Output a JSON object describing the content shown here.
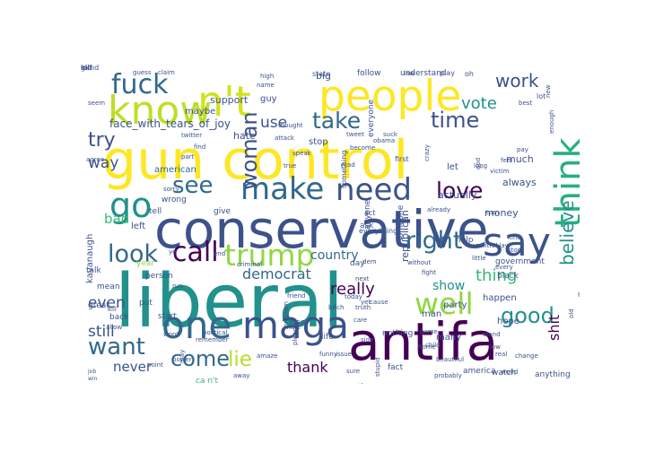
{
  "palette": {
    "dark_purple": "#440154",
    "indigo": "#3b528b",
    "blue": "#31688e",
    "teal": "#21918c",
    "green": "#35b779",
    "lime": "#90d743",
    "yellow": "#fde725",
    "deep_violet": "#472c7a"
  },
  "words": [
    {
      "text": "conservative",
      "color": "#3b528b"
    },
    {
      "text": "liberal",
      "color": "#21918c"
    },
    {
      "text": "gun control",
      "color": "#fde725"
    },
    {
      "text": "antifa",
      "color": "#440154"
    },
    {
      "text": "people",
      "color": "#fde725"
    },
    {
      "text": "know",
      "color": "#bddf26"
    },
    {
      "text": "n't",
      "color": "#d2e21b"
    },
    {
      "text": "say",
      "color": "#3b528b"
    },
    {
      "text": "one",
      "color": "#31688e"
    },
    {
      "text": "maga",
      "color": "#3b528b"
    },
    {
      "text": "go",
      "color": "#21918c"
    },
    {
      "text": "make",
      "color": "#31688e"
    },
    {
      "text": "need",
      "color": "#3b528b"
    },
    {
      "text": "think",
      "color": "#29af7f"
    },
    {
      "text": "trump",
      "color": "#90d743"
    },
    {
      "text": "fuck",
      "color": "#31688e"
    },
    {
      "text": "well",
      "color": "#90d743"
    },
    {
      "text": "right",
      "color": "#31688e"
    },
    {
      "text": "call",
      "color": "#440154"
    },
    {
      "text": "look",
      "color": "#31688e"
    },
    {
      "text": "take",
      "color": "#31688e"
    },
    {
      "text": "time",
      "color": "#3b528b"
    },
    {
      "text": "see",
      "color": "#31688e"
    },
    {
      "text": "want",
      "color": "#31688e"
    },
    {
      "text": "come",
      "color": "#31688e"
    },
    {
      "text": "good",
      "color": "#21918c"
    },
    {
      "text": "love",
      "color": "#440154"
    },
    {
      "text": "try",
      "color": "#3b528b"
    },
    {
      "text": "woman",
      "color": "#3b528b"
    },
    {
      "text": "lie",
      "color": "#b5de2b"
    },
    {
      "text": "believe",
      "color": "#21918c"
    },
    {
      "text": "work",
      "color": "#3b528b"
    },
    {
      "text": "vote",
      "color": "#21918c"
    },
    {
      "text": "use",
      "color": "#3b528b"
    },
    {
      "text": "way",
      "color": "#3b528b"
    },
    {
      "text": "really",
      "color": "#440154"
    },
    {
      "text": "thing",
      "color": "#35b779"
    },
    {
      "text": "democrat",
      "color": "#31688e"
    },
    {
      "text": "still",
      "color": "#3b528b"
    },
    {
      "text": "even",
      "color": "#3b528b"
    },
    {
      "text": "thank",
      "color": "#440154"
    },
    {
      "text": "never",
      "color": "#3b528b"
    },
    {
      "text": "bad",
      "color": "#35b779"
    },
    {
      "text": "shit",
      "color": "#440154"
    },
    {
      "text": "show",
      "color": "#21918c"
    },
    {
      "text": "country",
      "color": "#31688e"
    },
    {
      "text": "face_with_tears_of_joy",
      "color": "#3b528b"
    },
    {
      "text": "support",
      "color": "#3b528b"
    },
    {
      "text": "guy",
      "color": "#3b528b"
    },
    {
      "text": "hate",
      "color": "#3b528b"
    },
    {
      "text": "stop",
      "color": "#3b528b"
    },
    {
      "text": "big",
      "color": "#3b528b"
    },
    {
      "text": "maybe",
      "color": "#3b528b"
    },
    {
      "text": "american",
      "color": "#31688e"
    },
    {
      "text": "left",
      "color": "#3b528b"
    },
    {
      "text": "give",
      "color": "#3b528b"
    },
    {
      "text": "wrong",
      "color": "#3b528b"
    },
    {
      "text": "kavanaugh",
      "color": "#3b528b"
    },
    {
      "text": "tell",
      "color": "#3b528b"
    },
    {
      "text": "talk",
      "color": "#3b528b"
    },
    {
      "text": "mean",
      "color": "#3b528b"
    },
    {
      "text": "great",
      "color": "#3b528b"
    },
    {
      "text": "back",
      "color": "#3b528b"
    },
    {
      "text": "put",
      "color": "#3b528b"
    },
    {
      "text": "start",
      "color": "#3b528b"
    },
    {
      "text": "year",
      "color": "#90d743"
    },
    {
      "text": "person",
      "color": "#3b528b"
    },
    {
      "text": "lose",
      "color": "#3b528b"
    },
    {
      "text": "life",
      "color": "#3b528b"
    },
    {
      "text": "another",
      "color": "#3b528b"
    },
    {
      "text": "fact",
      "color": "#3b528b"
    },
    {
      "text": "america",
      "color": "#3b528b"
    },
    {
      "text": "watch",
      "color": "#3b528b"
    },
    {
      "text": "anything",
      "color": "#3b528b"
    },
    {
      "text": "ca n't",
      "color": "#35b779"
    },
    {
      "text": "republican",
      "color": "#3b528b"
    },
    {
      "text": "actually",
      "color": "#3b528b"
    },
    {
      "text": "money",
      "color": "#3b528b"
    },
    {
      "text": "always",
      "color": "#3b528b"
    },
    {
      "text": "much",
      "color": "#3b528b"
    },
    {
      "text": "let",
      "color": "#3b528b"
    },
    {
      "text": "happen",
      "color": "#3b528b"
    },
    {
      "text": "hope",
      "color": "#3b528b"
    },
    {
      "text": "party",
      "color": "#3b528b"
    },
    {
      "text": "man",
      "color": "#3b528b"
    },
    {
      "text": "many",
      "color": "#3b528b"
    },
    {
      "text": "president",
      "color": "#35b779"
    },
    {
      "text": "government",
      "color": "#3b528b"
    },
    {
      "text": "black",
      "color": "#3b528b"
    },
    {
      "text": "ask",
      "color": "#3b528b"
    },
    {
      "text": "help",
      "color": "#3b528b"
    },
    {
      "text": "day",
      "color": "#3b528b"
    },
    {
      "text": "everything",
      "color": "#3b528b"
    },
    {
      "text": "nothing",
      "color": "#3b528b"
    },
    {
      "text": "anyone",
      "color": "#3b528b"
    },
    {
      "text": "someone",
      "color": "#3b528b"
    },
    {
      "text": "everyone",
      "color": "#3b528b"
    },
    {
      "text": "follow",
      "color": "#3b528b"
    },
    {
      "text": "understand",
      "color": "#3b528b"
    },
    {
      "text": "state",
      "color": "#3b528b"
    },
    {
      "text": "play",
      "color": "#3b528b"
    },
    {
      "text": "oh",
      "color": "#3b528b"
    },
    {
      "text": "lot",
      "color": "#3b528b"
    },
    {
      "text": "new",
      "color": "#3b528b"
    },
    {
      "text": "enough",
      "color": "#3b528b"
    },
    {
      "text": "best",
      "color": "#3b528b"
    },
    {
      "text": "thought",
      "color": "#3b528b"
    },
    {
      "text": "attack",
      "color": "#3b528b"
    },
    {
      "text": "speak",
      "color": "#3b528b"
    },
    {
      "text": "find",
      "color": "#3b528b"
    },
    {
      "text": "twitter",
      "color": "#3b528b"
    },
    {
      "text": "high",
      "color": "#3b528b"
    },
    {
      "text": "name",
      "color": "#3b528b"
    },
    {
      "text": "guess",
      "color": "#3b528b"
    },
    {
      "text": "claim",
      "color": "#3b528b"
    },
    {
      "text": "seem",
      "color": "#3b528b"
    },
    {
      "text": "part",
      "color": "#3b528b"
    },
    {
      "text": "become",
      "color": "#3b528b"
    },
    {
      "text": "agree",
      "color": "#3b528b"
    },
    {
      "text": "true",
      "color": "#3b528b"
    },
    {
      "text": "read",
      "color": "#3b528b"
    },
    {
      "text": "first",
      "color": "#3b528b"
    },
    {
      "text": "act",
      "color": "#3b528b"
    },
    {
      "text": "tweet",
      "color": "#3b528b"
    },
    {
      "text": "something",
      "color": "#3b528b"
    },
    {
      "text": "end",
      "color": "#3b528b"
    },
    {
      "text": "dem",
      "color": "#3b528b"
    },
    {
      "text": "control law",
      "color": "#3b528b"
    },
    {
      "text": "kind",
      "color": "#3b528b"
    },
    {
      "text": "already",
      "color": "#3b528b"
    },
    {
      "text": "turn",
      "color": "#3b528b"
    },
    {
      "text": "every",
      "color": "#3b528b"
    },
    {
      "text": "feel",
      "color": "#3b528b"
    },
    {
      "text": "god",
      "color": "#3b528b"
    },
    {
      "text": "victim",
      "color": "#3b528b"
    },
    {
      "text": "long",
      "color": "#3b528b"
    },
    {
      "text": "pay",
      "color": "#3b528b"
    },
    {
      "text": "law",
      "color": "#3b528b"
    },
    {
      "text": "obama",
      "color": "#3b528b"
    },
    {
      "text": "crazy",
      "color": "#3b528b"
    },
    {
      "text": "suck",
      "color": "#3b528b"
    },
    {
      "text": "next",
      "color": "#3b528b"
    },
    {
      "text": "without",
      "color": "#3b528b"
    },
    {
      "text": "little",
      "color": "#3b528b"
    },
    {
      "text": "fight",
      "color": "#3b528b"
    },
    {
      "text": "side",
      "color": "#3b528b"
    },
    {
      "text": "yet",
      "color": "#3b528b"
    },
    {
      "text": "cause",
      "color": "#3b528b"
    },
    {
      "text": "bitch",
      "color": "#3b528b"
    },
    {
      "text": "today",
      "color": "#3b528b"
    },
    {
      "text": "friend",
      "color": "#3b528b"
    },
    {
      "text": "truth",
      "color": "#3b528b"
    },
    {
      "text": "care",
      "color": "#3b528b"
    },
    {
      "text": "game",
      "color": "#3b528b"
    },
    {
      "text": "stand",
      "color": "#3b528b"
    },
    {
      "text": "story",
      "color": "#3b528b"
    },
    {
      "text": "head",
      "color": "#3b528b"
    },
    {
      "text": "old",
      "color": "#3b528b"
    },
    {
      "text": "low",
      "color": "#3b528b"
    },
    {
      "text": "home",
      "color": "#3b528b"
    },
    {
      "text": "beautiful",
      "color": "#3b528b"
    },
    {
      "text": "real",
      "color": "#3b528b"
    },
    {
      "text": "change",
      "color": "#3b528b"
    },
    {
      "text": "child",
      "color": "#3b528b"
    },
    {
      "text": "world",
      "color": "#3b528b"
    },
    {
      "text": "fake",
      "color": "#3b528b"
    },
    {
      "text": "issue",
      "color": "#3b528b"
    },
    {
      "text": "funny",
      "color": "#3b528b"
    },
    {
      "text": "point",
      "color": "#3b528b"
    },
    {
      "text": "job",
      "color": "#3b528b"
    },
    {
      "text": "win",
      "color": "#3b528b"
    },
    {
      "text": "amaze",
      "color": "#3b528b"
    },
    {
      "text": "remember",
      "color": "#3b528b"
    },
    {
      "text": "word",
      "color": "#3b528b"
    },
    {
      "text": "political",
      "color": "#3b528b"
    },
    {
      "text": "may",
      "color": "#3b528b"
    },
    {
      "text": "power",
      "color": "#3b528b"
    },
    {
      "text": "allow",
      "color": "#3b528b"
    },
    {
      "text": "kill",
      "color": "#3b528b"
    },
    {
      "text": "run",
      "color": "#3b528b"
    },
    {
      "text": "ye",
      "color": "#3b528b"
    },
    {
      "text": "sorry",
      "color": "#3b528b"
    },
    {
      "text": "please",
      "color": "#3b528b"
    },
    {
      "text": "must",
      "color": "#3b528b"
    },
    {
      "text": "away",
      "color": "#3b528b"
    },
    {
      "text": "problem",
      "color": "#3b528b"
    },
    {
      "text": "criminal",
      "color": "#3b528b"
    },
    {
      "text": "stupid",
      "color": "#3b528b"
    },
    {
      "text": "sure",
      "color": "#3b528b"
    },
    {
      "text": "probably",
      "color": "#3b528b"
    },
    {
      "text": "kid",
      "color": "#3b528b"
    },
    {
      "text": "mind",
      "color": "#3b528b"
    },
    {
      "text": "girl",
      "color": "#3b528b"
    },
    {
      "text": "lol",
      "color": "#3b528b"
    }
  ]
}
